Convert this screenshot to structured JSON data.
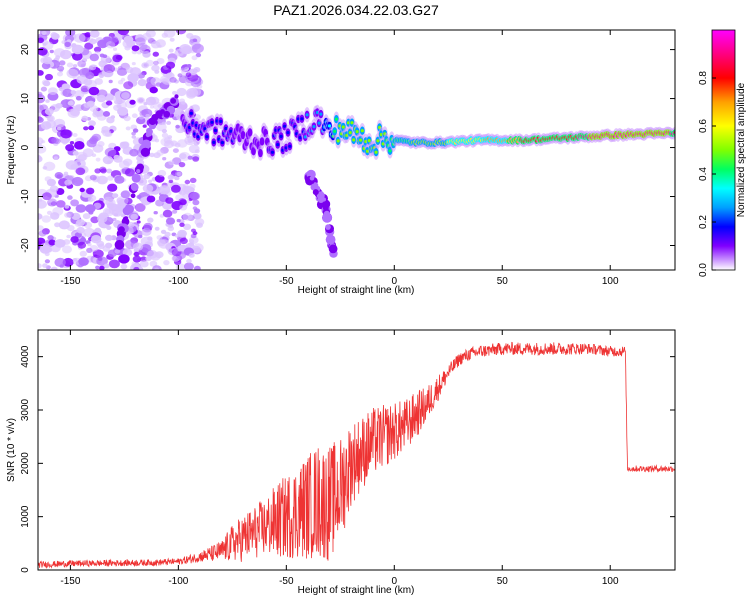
{
  "title": "PAZ1.2026.034.22.03.G27",
  "chart_data": [
    {
      "type": "heatmap",
      "name": "spectrogram",
      "xlabel": "Height of straight line (km)",
      "ylabel": "Frequency (Hz)",
      "xlim": [
        -165,
        130
      ],
      "ylim": [
        -25,
        24
      ],
      "xticks": [
        -150,
        -100,
        -50,
        0,
        50,
        100
      ],
      "xtick_labels": [
        "-150",
        "-100",
        "-50",
        "0",
        "50",
        "100"
      ],
      "yticks": [
        20,
        10,
        0,
        -10,
        -20
      ],
      "ytick_labels": [
        "20",
        "10",
        "0",
        "-10",
        "-20"
      ],
      "ridge": {
        "x": [
          -98,
          -90,
          -80,
          -70,
          -60,
          -50,
          -40,
          -35,
          -30,
          -25,
          -20,
          -15,
          -10,
          -5,
          0,
          10,
          20,
          40,
          60,
          80,
          100,
          130
        ],
        "frequency": [
          5,
          4,
          3,
          2,
          1,
          2,
          5,
          6,
          3,
          4,
          3,
          2,
          1,
          2,
          1.5,
          1,
          1,
          1.5,
          1.5,
          2,
          2.5,
          3
        ],
        "amplitude": [
          0.2,
          0.25,
          0.22,
          0.2,
          0.2,
          0.25,
          0.3,
          0.3,
          0.4,
          0.6,
          0.55,
          0.55,
          0.6,
          0.55,
          0.5,
          0.55,
          0.6,
          0.7,
          0.8,
          0.85,
          0.95,
          0.9
        ]
      },
      "colorbar": {
        "label": "Normalized spectral amplitude",
        "range": [
          0,
          1
        ],
        "ticks": [
          0.0,
          0.2,
          0.4,
          0.6,
          0.8
        ],
        "tick_labels": [
          "0.0",
          "0.2",
          "0.4",
          "0.6",
          "0.8"
        ],
        "colors": [
          "#ffffff",
          "#cc99ff",
          "#8000ff",
          "#0000ff",
          "#00a0ff",
          "#00ffff",
          "#00ff60",
          "#80ff00",
          "#ffff00",
          "#ffa000",
          "#ff0000",
          "#ff0080",
          "#ff00ff"
        ]
      }
    },
    {
      "type": "line",
      "name": "snr",
      "xlabel": "Height of straight line (km)",
      "ylabel": "SNR (10 * v/v)",
      "xlim": [
        -165,
        130
      ],
      "ylim": [
        0,
        4500
      ],
      "xticks": [
        -150,
        -100,
        -50,
        0,
        50,
        100
      ],
      "xtick_labels": [
        "-150",
        "-100",
        "-50",
        "0",
        "50",
        "100"
      ],
      "yticks": [
        0,
        1000,
        2000,
        3000,
        4000
      ],
      "ytick_labels": [
        "0",
        "1000",
        "2000",
        "3000",
        "4000"
      ],
      "color": "#ee3333",
      "x": [
        -165,
        -150,
        -130,
        -110,
        -100,
        -95,
        -90,
        -85,
        -80,
        -75,
        -70,
        -65,
        -60,
        -55,
        -50,
        -45,
        -40,
        -35,
        -30,
        -25,
        -22,
        -20,
        -15,
        -10,
        -5,
        0,
        5,
        10,
        15,
        20,
        25,
        30,
        35,
        40,
        50,
        60,
        70,
        80,
        90,
        100,
        107,
        108,
        110,
        120,
        130
      ],
      "y": [
        100,
        120,
        130,
        140,
        160,
        200,
        250,
        300,
        350,
        500,
        600,
        700,
        800,
        900,
        1000,
        1100,
        1200,
        1300,
        1250,
        1500,
        1800,
        2000,
        2200,
        2400,
        2500,
        2600,
        2700,
        2900,
        3100,
        3400,
        3700,
        3950,
        4050,
        4100,
        4150,
        4150,
        4150,
        4150,
        4150,
        4100,
        4100,
        1900,
        1900,
        1900,
        1900
      ],
      "noise": [
        60,
        60,
        60,
        60,
        60,
        80,
        100,
        150,
        200,
        350,
        450,
        500,
        550,
        700,
        800,
        900,
        1000,
        1100,
        1100,
        1000,
        900,
        800,
        700,
        650,
        600,
        550,
        500,
        450,
        350,
        250,
        150,
        120,
        120,
        120,
        120,
        120,
        120,
        120,
        100,
        100,
        100,
        60,
        60,
        60,
        60
      ]
    }
  ]
}
